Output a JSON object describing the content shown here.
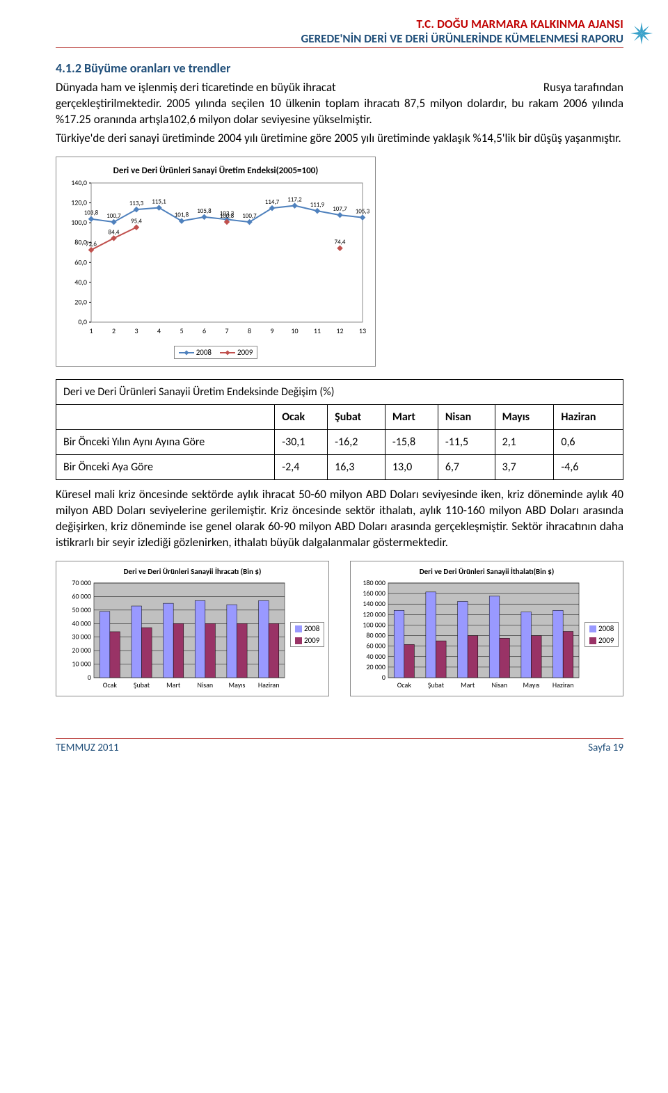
{
  "header": {
    "agency": "T.C. DOĞU MARMARA KALKINMA AJANSI",
    "report": "GEREDE'NİN DERİ VE DERİ ÜRÜNLERİNDE KÜMELENMESİ RAPORU",
    "star_color": "#37a0c9"
  },
  "section_title": "4.1.2 Büyüme oranları ve trendler",
  "para1a": "Dünyada ham ve işlenmiş deri ticaretinde en büyük ihracat",
  "para1b": "Rusya tarafından",
  "para2": "gerçekleştirilmektedir. 2005 yılında seçilen 10 ülkenin toplam ihracatı 87,5 milyon dolardır, bu rakam 2006 yılında %17.25 oranında artışla102,6 milyon dolar seviyesine yükselmiştir.",
  "para3": "Türkiye'de deri sanayi üretiminde 2004 yılı üretimine göre 2005 yılı üretiminde yaklaşık %14,5'lik bir düşüş yaşanmıştır.",
  "line_chart": {
    "title": "Deri ve Deri Ürünleri Sanayi Üretim Endeksi(2005=100)",
    "x_labels": [
      "1",
      "2",
      "3",
      "4",
      "5",
      "6",
      "7",
      "8",
      "9",
      "10",
      "11",
      "12",
      "13"
    ],
    "y_ticks": [
      0,
      20,
      40,
      60,
      80,
      100,
      120,
      140
    ],
    "ylim": [
      0,
      140
    ],
    "series": [
      {
        "name": "2008",
        "color": "#4f81bd",
        "values": [
          103.8,
          100.7,
          113.3,
          115.1,
          101.8,
          105.8,
          103.3,
          100.7,
          114.7,
          117.2,
          111.9,
          107.7,
          105.3
        ]
      },
      {
        "name": "2009",
        "color": "#c0504d",
        "values": [
          72.6,
          84.4,
          95.4,
          null,
          null,
          null,
          100.8,
          null,
          null,
          null,
          null,
          74.4,
          null
        ]
      }
    ],
    "visible_labels": [
      "103,8",
      "100,7",
      "113,3",
      "115,1",
      "101,8",
      "105,8",
      "103,3",
      "100,7",
      "114,7",
      "117,2",
      "111,9",
      "107,7",
      "105,3",
      "72,6",
      "84,4",
      "95,4",
      "100,8",
      "74,4"
    ],
    "background": "#ffffff",
    "grid": false
  },
  "change_table": {
    "title": "Deri ve Deri Ürünleri Sanayii Üretim Endeksinde Değişim (%)",
    "col_headers": [
      "Ocak",
      "Şubat",
      "Mart",
      "Nisan",
      "Mayıs",
      "Haziran"
    ],
    "rows": [
      {
        "label": "Bir Önceki Yılın Aynı Ayına Göre",
        "cells": [
          "-30,1",
          "-16,2",
          "-15,8",
          "-11,5",
          "2,1",
          "0,6"
        ]
      },
      {
        "label": "Bir Önceki Aya Göre",
        "cells": [
          "-2,4",
          "16,3",
          "13,0",
          "6,7",
          "3,7",
          "-4,6"
        ]
      }
    ]
  },
  "para4": "Küresel mali kriz öncesinde sektörde aylık ihracat 50-60 milyon ABD Doları seviyesinde iken, kriz döneminde aylık 40 milyon ABD Doları seviyelerine gerilemiştir. Kriz öncesinde sektör ithalatı, aylık 110-160 milyon ABD Doları arasında değişirken, kriz döneminde ise genel olarak 60-90 milyon ABD Doları arasında gerçekleşmiştir. Sektör ihracatının daha istikrarlı bir seyir izlediği gözlenirken, ithalatı büyük dalgalanmalar göstermektedir.",
  "bar_chart_left": {
    "title": "Deri ve Deri Ürünleri Sanayii İhracatı (Bin $)",
    "categories": [
      "Ocak",
      "Şubat",
      "Mart",
      "Nisan",
      "Mayıs",
      "Haziran"
    ],
    "y_ticks": [
      0,
      10000,
      20000,
      30000,
      40000,
      50000,
      60000,
      70000
    ],
    "y_tick_labels": [
      "0",
      "10 000",
      "20 000",
      "30 000",
      "40 000",
      "50 000",
      "60 000",
      "70 000"
    ],
    "ylim": [
      0,
      70000
    ],
    "series": [
      {
        "name": "2008",
        "color": "#9999ff",
        "values": [
          49000,
          53000,
          55000,
          57000,
          54000,
          57000
        ]
      },
      {
        "name": "2009",
        "color": "#993366",
        "values": [
          34000,
          37000,
          40000,
          40000,
          40000,
          40000
        ]
      }
    ],
    "background": "#c0c0c0"
  },
  "bar_chart_right": {
    "title": "Deri ve Deri Ürünleri Sanayii İthalatı(Bin $)",
    "categories": [
      "Ocak",
      "Şubat",
      "Mart",
      "Nisan",
      "Mayıs",
      "Haziran"
    ],
    "y_ticks": [
      0,
      20000,
      40000,
      60000,
      80000,
      100000,
      120000,
      140000,
      160000,
      180000
    ],
    "y_tick_labels": [
      "0",
      "20 000",
      "40 000",
      "60 000",
      "80 000",
      "100 000",
      "120 000",
      "140 000",
      "160 000",
      "180 000"
    ],
    "ylim": [
      0,
      180000
    ],
    "series": [
      {
        "name": "2008",
        "color": "#9999ff",
        "values": [
          128000,
          163000,
          145000,
          155000,
          125000,
          128000
        ]
      },
      {
        "name": "2009",
        "color": "#993366",
        "values": [
          63000,
          70000,
          80000,
          75000,
          80000,
          88000
        ]
      }
    ],
    "background": "#c0c0c0"
  },
  "footer": {
    "left": "TEMMUZ 2011",
    "right": "Sayfa 19"
  }
}
